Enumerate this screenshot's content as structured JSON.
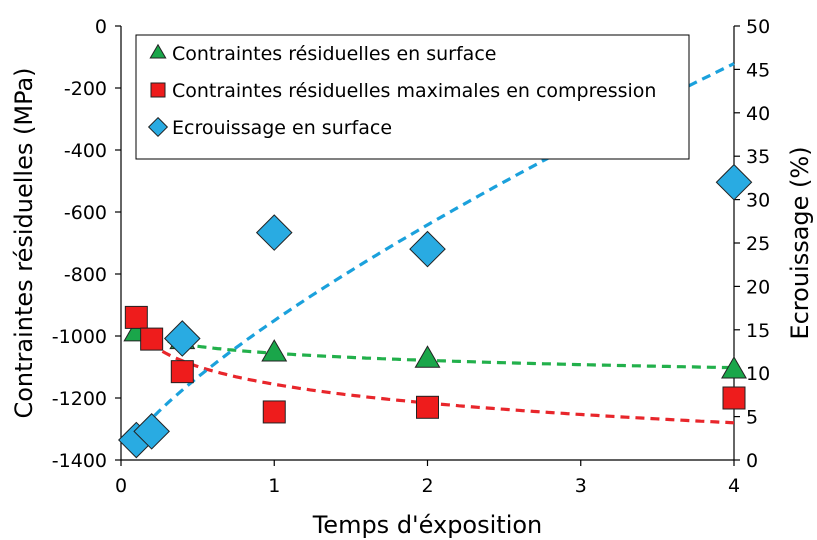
{
  "chart_data": {
    "type": "scatter",
    "xlabel": "Temps d'éxposition",
    "ylabel_left": "Contraintes résiduelles (MPa)",
    "ylabel_right": "Ecrouissage (%)",
    "xlim": [
      0,
      4
    ],
    "ylim_left": [
      -1400,
      0
    ],
    "ylim_right": [
      0,
      50
    ],
    "x_ticks": [
      "0",
      "1",
      "2",
      "3",
      "4"
    ],
    "y_left_ticks": [
      "0",
      "-200",
      "-400",
      "-600",
      "-800",
      "-1000",
      "-1200",
      "-1400"
    ],
    "y_right_ticks": [
      "50",
      "45",
      "40",
      "35",
      "30",
      "25",
      "20",
      "15",
      "10",
      "5",
      "0"
    ],
    "grid": false,
    "legend_position": "top",
    "series": [
      {
        "name": "Contraintes résiduelles en surface",
        "axis": "left",
        "marker": "triangle",
        "color": "#1aa64a",
        "trend_color": "#22b04b",
        "x": [
          0.1,
          0.4,
          1,
          2,
          4
        ],
        "y": [
          -990,
          -1015,
          -1055,
          -1075,
          -1110
        ]
      },
      {
        "name": "Contraintes résiduelles maximales en compression",
        "axis": "left",
        "marker": "square",
        "color": "#ee1c1c",
        "trend_color": "#e8262b",
        "x": [
          0.1,
          0.2,
          0.4,
          1,
          2,
          4
        ],
        "y": [
          -940,
          -1010,
          -1115,
          -1245,
          -1230,
          -1200
        ]
      },
      {
        "name": "Ecrouissage en surface",
        "axis": "right",
        "marker": "diamond",
        "color": "#29abe2",
        "trend_color": "#1ba1dc",
        "x": [
          0.1,
          0.2,
          0.4,
          1,
          2,
          4
        ],
        "y": [
          2.3,
          3.3,
          14,
          26.2,
          24.3,
          32
        ]
      }
    ]
  }
}
